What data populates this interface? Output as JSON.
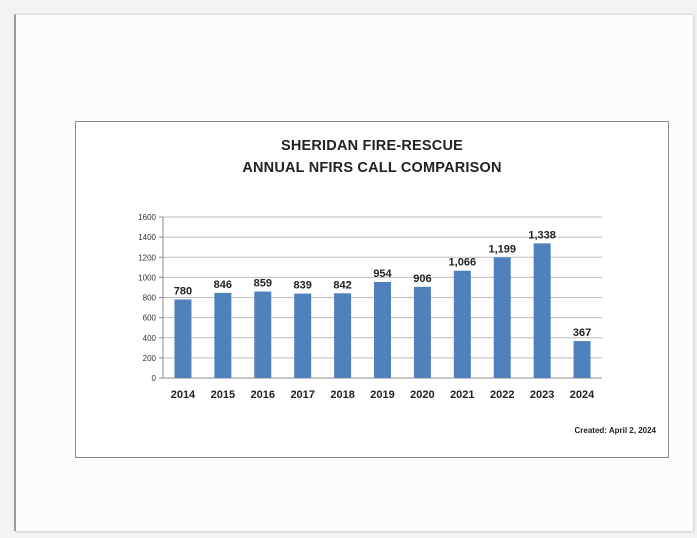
{
  "chart_data": {
    "type": "bar",
    "title_lines": [
      "SHERIDAN FIRE-RESCUE",
      "ANNUAL NFIRS CALL COMPARISON"
    ],
    "categories": [
      "2014",
      "2015",
      "2016",
      "2017",
      "2018",
      "2019",
      "2020",
      "2021",
      "2022",
      "2023",
      "2024"
    ],
    "values": [
      780,
      846,
      859,
      839,
      842,
      954,
      906,
      1066,
      1199,
      1338,
      367
    ],
    "data_labels": [
      "780",
      "846",
      "859",
      "839",
      "842",
      "954",
      "906",
      "1,066",
      "1,199",
      "1,338",
      "367"
    ],
    "ylim": [
      0,
      1600
    ],
    "yticks": [
      "0",
      "200",
      "400",
      "600",
      "800",
      "1000",
      "1200",
      "1400",
      "1600"
    ],
    "grid": true,
    "bar_color": "#4f81bd"
  },
  "footer": {
    "created": "Created:  April 2, 2024"
  }
}
